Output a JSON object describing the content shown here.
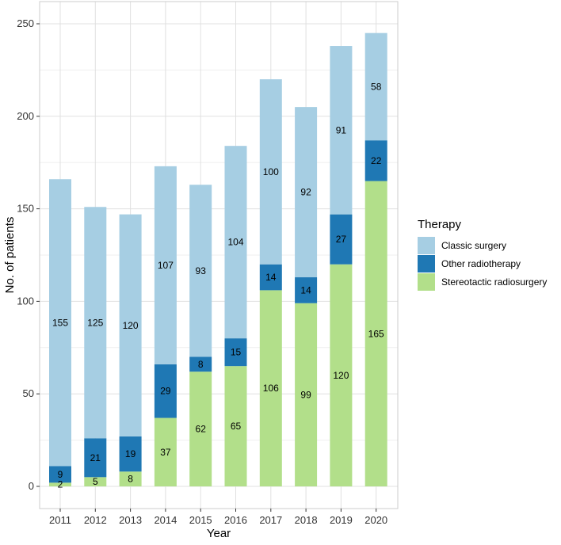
{
  "chart_data": {
    "type": "bar",
    "stacked": true,
    "title": "",
    "xlabel": "Year",
    "ylabel": "No. of patients",
    "ylim": [
      0,
      250
    ],
    "yticks": [
      0,
      50,
      100,
      150,
      200,
      250
    ],
    "grid": true,
    "legend_position": "right",
    "legend_title": "Therapy",
    "categories": [
      "2011",
      "2012",
      "2013",
      "2014",
      "2015",
      "2016",
      "2017",
      "2018",
      "2019",
      "2020"
    ],
    "series": [
      {
        "name": "Stereotactic radiosurgery",
        "color": "#b2df8a",
        "values": [
          2,
          5,
          8,
          37,
          62,
          65,
          106,
          99,
          120,
          165
        ]
      },
      {
        "name": "Other radiotherapy",
        "color": "#1f78b4",
        "values": [
          9,
          21,
          19,
          29,
          8,
          15,
          14,
          14,
          27,
          22
        ]
      },
      {
        "name": "Classic surgery",
        "color": "#a6cee3",
        "values": [
          155,
          125,
          120,
          107,
          93,
          104,
          100,
          92,
          91,
          58
        ]
      }
    ],
    "legend_order": [
      "Classic surgery",
      "Other radiotherapy",
      "Stereotactic radiosurgery"
    ]
  },
  "colors": {
    "panel_border": "#cccccc",
    "grid_major": "#e0e0e0",
    "grid_minor": "#efefef"
  }
}
